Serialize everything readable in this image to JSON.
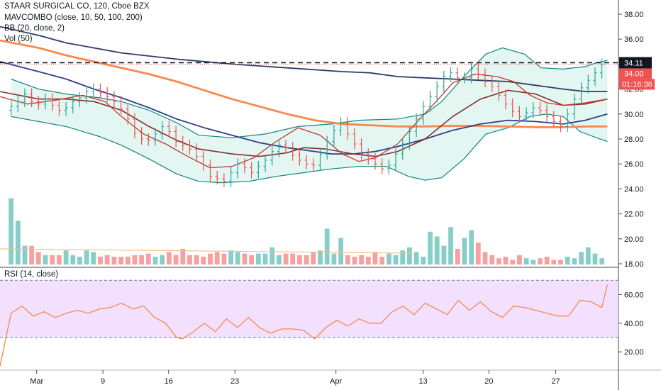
{
  "legend": {
    "line1": "STAAR SURGICAL CO, 120, Cboe BZX",
    "line2": "MAVCOMBO (close, 10, 50, 100, 200)",
    "line3": "BB (20, close, 2)",
    "line4": "Vol (50)",
    "rsi": "RSI (14, close)"
  },
  "price_axis": {
    "ticks": [
      "38.00",
      "36.00",
      "34.00",
      "32.00",
      "30.00",
      "28.00",
      "26.00",
      "24.00",
      "22.00",
      "20.00",
      "18.00"
    ],
    "last_price": "34.11",
    "label_2": "34.00",
    "countdown": "01:16:36"
  },
  "rsi_axis": {
    "ticks": [
      "60.00",
      "40.00",
      "20.00"
    ]
  },
  "time_axis": {
    "ticks": [
      "Mar",
      "9",
      "16",
      "23",
      "Apr",
      "13",
      "20",
      "27"
    ]
  },
  "colors": {
    "up": "#26a69a",
    "down": "#ef5350",
    "bb": "#138484",
    "bb_fill": "#cceee8",
    "ma10": "#c0392b",
    "ma50": "#8b2f2f",
    "ma100": "#2f3e8a",
    "ma200": "#303b66",
    "ma_orange": "#f7894a",
    "rsi": "#f7894a",
    "rsi_band": "#efd6ff",
    "vol_ma": "#f2c08a",
    "price_label": "#ef5350",
    "last_label": "#131722"
  },
  "chart_data": [
    {
      "type": "line",
      "panel": "price",
      "y_range": [
        18,
        39
      ],
      "x_range": [
        -2,
        110
      ],
      "last_price_line": 34.11,
      "price_label": 34.0,
      "bollinger": {
        "upper": [
          [
            0,
            32.8
          ],
          [
            5,
            32.0
          ],
          [
            10,
            31.6
          ],
          [
            16,
            31.3
          ],
          [
            20,
            31.0
          ],
          [
            25,
            30.3
          ],
          [
            30,
            29.3
          ],
          [
            34,
            28.3
          ],
          [
            40,
            28.1
          ],
          [
            46,
            28.4
          ],
          [
            52,
            29.0
          ],
          [
            58,
            29.2
          ],
          [
            63,
            29.5
          ],
          [
            70,
            29.6
          ],
          [
            75,
            30.0
          ],
          [
            78,
            31.0
          ],
          [
            82,
            33.0
          ],
          [
            86,
            34.8
          ],
          [
            89,
            35.3
          ],
          [
            93,
            34.8
          ],
          [
            96,
            33.7
          ],
          [
            100,
            33.6
          ],
          [
            104,
            33.8
          ],
          [
            106,
            34.1
          ],
          [
            108,
            34.3
          ]
        ],
        "lower": [
          [
            0,
            29.8
          ],
          [
            5,
            29.4
          ],
          [
            10,
            29.0
          ],
          [
            16,
            28.2
          ],
          [
            20,
            27.5
          ],
          [
            25,
            26.4
          ],
          [
            30,
            25.2
          ],
          [
            34,
            24.6
          ],
          [
            38,
            24.5
          ],
          [
            43,
            24.6
          ],
          [
            48,
            25.0
          ],
          [
            53,
            25.3
          ],
          [
            58,
            25.6
          ],
          [
            63,
            25.8
          ],
          [
            68,
            25.8
          ],
          [
            72,
            25.0
          ],
          [
            75,
            24.7
          ],
          [
            78,
            24.9
          ],
          [
            82,
            26.4
          ],
          [
            86,
            28.4
          ],
          [
            90,
            28.9
          ],
          [
            94,
            29.8
          ],
          [
            97,
            30.0
          ],
          [
            100,
            29.8
          ],
          [
            103,
            28.6
          ],
          [
            106,
            28.1
          ],
          [
            108,
            27.8
          ]
        ]
      },
      "moving_averages": [
        {
          "color_key": "ma_orange",
          "width": 2.8,
          "points": [
            [
              -2,
              35.9
            ],
            [
              5,
              35.3
            ],
            [
              10,
              34.7
            ],
            [
              15,
              34.2
            ],
            [
              20,
              33.7
            ],
            [
              25,
              33.2
            ],
            [
              30,
              32.6
            ],
            [
              35,
              31.9
            ],
            [
              40,
              31.2
            ],
            [
              45,
              30.6
            ],
            [
              50,
              30.0
            ],
            [
              55,
              29.5
            ],
            [
              60,
              29.2
            ],
            [
              65,
              29.1
            ],
            [
              70,
              29.0
            ],
            [
              75,
              29.0
            ],
            [
              80,
              29.05
            ],
            [
              85,
              29.05
            ],
            [
              90,
              29.0
            ],
            [
              95,
              28.95
            ],
            [
              100,
              28.95
            ],
            [
              104,
              29.0
            ],
            [
              108,
              29.0
            ]
          ]
        },
        {
          "color_key": "ma200",
          "width": 1.8,
          "points": [
            [
              -2,
              37.0
            ],
            [
              5,
              36.3
            ],
            [
              10,
              35.7
            ],
            [
              20,
              34.9
            ],
            [
              30,
              34.4
            ],
            [
              40,
              34.0
            ],
            [
              50,
              33.7
            ],
            [
              60,
              33.4
            ],
            [
              65,
              33.3
            ],
            [
              70,
              33.0
            ],
            [
              75,
              32.9
            ],
            [
              80,
              32.8
            ],
            [
              85,
              32.7
            ],
            [
              90,
              32.6
            ],
            [
              95,
              32.3
            ],
            [
              100,
              32.0
            ],
            [
              104,
              31.8
            ],
            [
              108,
              31.8
            ]
          ]
        },
        {
          "color_key": "ma100",
          "width": 1.8,
          "points": [
            [
              -2,
              34.2
            ],
            [
              5,
              33.4
            ],
            [
              10,
              32.8
            ],
            [
              15,
              32.0
            ],
            [
              20,
              31.3
            ],
            [
              25,
              30.5
            ],
            [
              30,
              29.6
            ],
            [
              35,
              28.9
            ],
            [
              40,
              28.3
            ],
            [
              45,
              27.7
            ],
            [
              50,
              27.3
            ],
            [
              55,
              27.0
            ],
            [
              58,
              26.8
            ],
            [
              62,
              26.8
            ],
            [
              66,
              27.0
            ],
            [
              70,
              27.4
            ],
            [
              75,
              28.0
            ],
            [
              80,
              28.7
            ],
            [
              85,
              29.2
            ],
            [
              90,
              29.5
            ],
            [
              95,
              29.4
            ],
            [
              100,
              29.2
            ],
            [
              104,
              29.5
            ],
            [
              108,
              30.0
            ]
          ]
        },
        {
          "color_key": "ma50",
          "width": 1.6,
          "points": [
            [
              -2,
              31.8
            ],
            [
              5,
              31.2
            ],
            [
              10,
              31.2
            ],
            [
              15,
              31.0
            ],
            [
              20,
              30.3
            ],
            [
              25,
              29.0
            ],
            [
              30,
              27.9
            ],
            [
              34,
              27.2
            ],
            [
              40,
              26.8
            ],
            [
              45,
              26.6
            ],
            [
              50,
              26.9
            ],
            [
              53,
              27.3
            ],
            [
              57,
              27.2
            ],
            [
              62,
              26.8
            ],
            [
              66,
              26.6
            ],
            [
              70,
              27.0
            ],
            [
              75,
              28.0
            ],
            [
              80,
              29.8
            ],
            [
              85,
              31.2
            ],
            [
              90,
              31.9
            ],
            [
              95,
              31.6
            ],
            [
              100,
              30.7
            ],
            [
              104,
              30.8
            ],
            [
              108,
              31.2
            ]
          ]
        },
        {
          "color_key": "ma10",
          "width": 1.3,
          "points": [
            [
              -2,
              31.4
            ],
            [
              3,
              30.8
            ],
            [
              8,
              31.1
            ],
            [
              13,
              31.5
            ],
            [
              17,
              31.0
            ],
            [
              20,
              29.8
            ],
            [
              24,
              28.4
            ],
            [
              28,
              27.6
            ],
            [
              32,
              26.6
            ],
            [
              36,
              25.7
            ],
            [
              40,
              25.8
            ],
            [
              44,
              26.5
            ],
            [
              48,
              27.8
            ],
            [
              52,
              28.9
            ],
            [
              56,
              28.3
            ],
            [
              60,
              26.8
            ],
            [
              63,
              26.2
            ],
            [
              66,
              26.5
            ],
            [
              70,
              27.6
            ],
            [
              74,
              29.6
            ],
            [
              77,
              31.0
            ],
            [
              80,
              32.5
            ],
            [
              84,
              33.2
            ],
            [
              88,
              33.0
            ],
            [
              91,
              32.6
            ],
            [
              94,
              31.5
            ],
            [
              97,
              30.9
            ],
            [
              100,
              30.7
            ],
            [
              104,
              30.9
            ],
            [
              108,
              31.2
            ]
          ]
        }
      ],
      "candles_close": [
        30.6,
        31.0,
        31.6,
        31.0,
        30.8,
        31.2,
        30.7,
        30.3,
        30.5,
        31.0,
        31.3,
        31.8,
        32.0,
        31.7,
        31.4,
        31.0,
        30.4,
        29.6,
        28.5,
        28.0,
        27.9,
        28.4,
        29.0,
        28.6,
        27.8,
        27.5,
        27.2,
        26.6,
        25.9,
        25.0,
        24.8,
        24.6,
        25.3,
        26.0,
        25.7,
        25.3,
        25.8,
        26.3,
        27.0,
        27.5,
        27.3,
        26.7,
        26.3,
        26.0,
        25.9,
        26.8,
        27.8,
        28.7,
        29.3,
        28.4,
        27.6,
        26.8,
        26.4,
        26.0,
        25.6,
        25.9,
        26.8,
        27.6,
        28.6,
        29.6,
        30.6,
        31.4,
        32.2,
        33.0,
        33.3,
        32.9,
        32.9,
        33.6,
        33.2,
        32.6,
        32.2,
        31.5,
        30.8,
        30.2,
        29.8,
        30.1,
        30.5,
        30.3,
        29.8,
        29.4,
        29.0,
        30.0,
        31.2,
        32.1,
        32.7,
        33.3,
        34.0
      ]
    },
    {
      "type": "bar",
      "panel": "volume",
      "volume_relative": [
        0.85,
        0.56,
        0.24,
        0.24,
        0.16,
        0.12,
        0.12,
        0.12,
        0.18,
        0.12,
        0.1,
        0.18,
        0.16,
        0.1,
        0.12,
        0.1,
        0.1,
        0.1,
        0.12,
        0.12,
        0.14,
        0.1,
        0.12,
        0.16,
        0.12,
        0.2,
        0.12,
        0.12,
        0.1,
        0.14,
        0.16,
        0.14,
        0.18,
        0.16,
        0.14,
        0.12,
        0.14,
        0.14,
        0.22,
        0.12,
        0.14,
        0.14,
        0.12,
        0.12,
        0.16,
        0.18,
        0.46,
        0.14,
        0.34,
        0.12,
        0.1,
        0.12,
        0.1,
        0.16,
        0.1,
        0.14,
        0.12,
        0.18,
        0.22,
        0.16,
        0.1,
        0.42,
        0.36,
        0.24,
        0.48,
        0.2,
        0.34,
        0.44,
        0.28,
        0.16,
        0.12,
        0.08,
        0.1,
        0.06,
        0.12,
        0.08,
        0.06,
        0.08,
        0.1,
        0.06,
        0.06,
        0.1,
        0.08,
        0.16,
        0.22,
        0.14,
        0.08
      ],
      "volume_ma_relative": 0.2
    },
    {
      "type": "line",
      "panel": "rsi",
      "y_range": [
        10,
        75
      ],
      "band": [
        30,
        70
      ],
      "values": [
        [
          -2,
          10
        ],
        [
          0,
          47
        ],
        [
          2,
          52
        ],
        [
          4,
          45
        ],
        [
          6,
          48
        ],
        [
          8,
          44
        ],
        [
          10,
          47
        ],
        [
          12,
          49
        ],
        [
          14,
          47
        ],
        [
          16,
          50
        ],
        [
          18,
          51
        ],
        [
          20,
          54
        ],
        [
          22,
          50
        ],
        [
          24,
          52
        ],
        [
          26,
          44
        ],
        [
          28,
          40
        ],
        [
          30,
          30
        ],
        [
          31,
          29
        ],
        [
          33,
          34
        ],
        [
          35,
          40
        ],
        [
          37,
          34
        ],
        [
          39,
          43
        ],
        [
          41,
          37
        ],
        [
          43,
          44
        ],
        [
          45,
          37
        ],
        [
          47,
          33
        ],
        [
          49,
          36
        ],
        [
          51,
          36
        ],
        [
          53,
          35
        ],
        [
          55,
          29
        ],
        [
          57,
          37
        ],
        [
          59,
          42
        ],
        [
          61,
          38
        ],
        [
          63,
          43
        ],
        [
          65,
          40
        ],
        [
          67,
          40
        ],
        [
          69,
          48
        ],
        [
          71,
          52
        ],
        [
          73,
          46
        ],
        [
          75,
          54
        ],
        [
          77,
          50
        ],
        [
          79,
          46
        ],
        [
          81,
          56
        ],
        [
          83,
          49
        ],
        [
          85,
          55
        ],
        [
          87,
          48
        ],
        [
          89,
          44
        ],
        [
          91,
          52
        ],
        [
          93,
          51
        ],
        [
          95,
          49
        ],
        [
          97,
          47
        ],
        [
          99,
          45
        ],
        [
          101,
          45
        ],
        [
          103,
          56
        ],
        [
          105,
          55
        ],
        [
          107,
          51
        ],
        [
          108,
          67
        ]
      ]
    }
  ]
}
